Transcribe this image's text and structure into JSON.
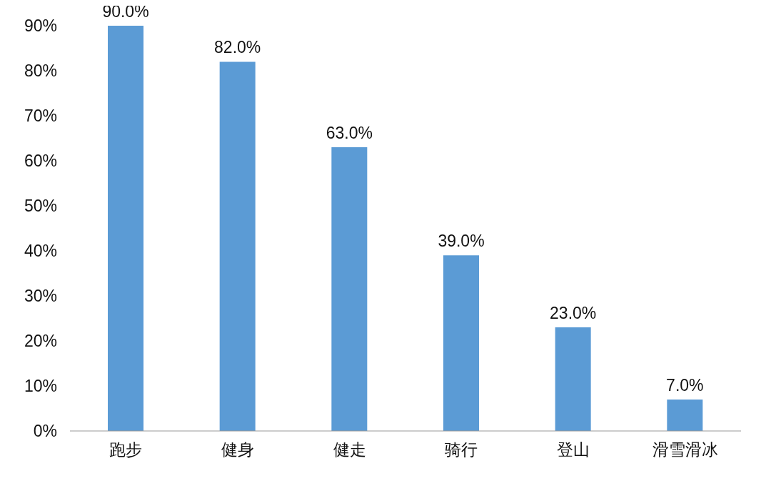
{
  "chart_data": {
    "type": "bar",
    "categories": [
      "跑步",
      "健身",
      "健走",
      "骑行",
      "登山",
      "滑雪滑冰"
    ],
    "values": [
      90,
      82,
      63,
      39,
      23,
      7
    ],
    "value_labels": [
      "90.0%",
      "82.0%",
      "63.0%",
      "39.0%",
      "23.0%",
      "7.0%"
    ],
    "color": "#5b9bd5",
    "ylim": [
      0,
      90
    ],
    "yticks": [
      {
        "value": 0,
        "label": "0%"
      },
      {
        "value": 10,
        "label": "10%"
      },
      {
        "value": 20,
        "label": "20%"
      },
      {
        "value": 30,
        "label": "30%"
      },
      {
        "value": 40,
        "label": "40%"
      },
      {
        "value": 50,
        "label": "50%"
      },
      {
        "value": 60,
        "label": "60%"
      },
      {
        "value": 70,
        "label": "70%"
      },
      {
        "value": 80,
        "label": "80%"
      },
      {
        "value": 90,
        "label": "90%"
      }
    ],
    "grid": false
  }
}
